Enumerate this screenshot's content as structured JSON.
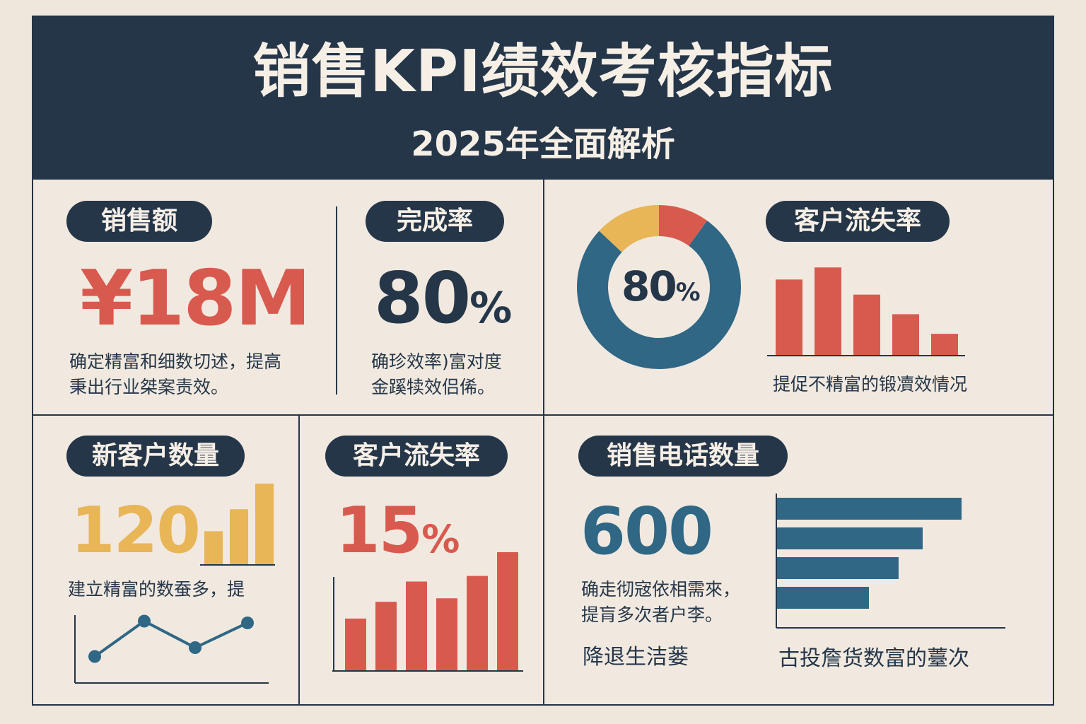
{
  "header": {
    "title": "销售KPI绩效考核指标",
    "subtitle": "2025年全面解析"
  },
  "colors": {
    "navy": "#253649",
    "red": "#d85a4f",
    "yellow": "#e8b557",
    "blue": "#2f6785",
    "background": "#efe7dc"
  },
  "cards": {
    "sales": {
      "label": "销售额",
      "value": "¥18M",
      "desc_line1": "确定精富和细数切述，提高",
      "desc_line2": "秉出行业桀案责效。"
    },
    "completion": {
      "label": "完成率",
      "value": "80",
      "unit": "%",
      "desc_line1": "确珍效率)富对度",
      "desc_line2": "金蹊犊效侣俙。"
    },
    "churn_top": {
      "label": "客户流失率",
      "donut_value": "80",
      "donut_unit": "%",
      "desc": "提促不精富的锻凟效情况"
    },
    "new_customers": {
      "label": "新客户数量",
      "value": "120",
      "desc": "建立精富的数蚕多，提"
    },
    "churn_bottom": {
      "label": "客户流失率",
      "value": "15",
      "unit": "%"
    },
    "calls": {
      "label": "销售电话数量",
      "value": "600",
      "desc_line1": "确走彻宼依相需來，",
      "desc_line2": "提肓多次者户李。",
      "note_left": "降退生洁蒌",
      "note_right": "古投詹货数富的薹次"
    }
  },
  "chart_data": [
    {
      "id": "donut",
      "type": "pie",
      "title": "客户流失率",
      "center_label": "80%",
      "slices": [
        {
          "name": "red",
          "value": 10,
          "color": "#d85a4f"
        },
        {
          "name": "blue",
          "value": 77,
          "color": "#2f6785"
        },
        {
          "name": "yellow",
          "value": 13,
          "color": "#e8b557"
        }
      ]
    },
    {
      "id": "churn_top_bars",
      "type": "bar",
      "values": [
        100,
        116,
        80,
        54,
        28
      ],
      "ylim": [
        0,
        120
      ],
      "color": "#d85a4f"
    },
    {
      "id": "new_customers_bars",
      "type": "bar",
      "values": [
        45,
        75,
        110
      ],
      "ylim": [
        0,
        110
      ],
      "color": "#e8b557"
    },
    {
      "id": "new_customers_line",
      "type": "line",
      "values": [
        15,
        35,
        20,
        34
      ],
      "ylim": [
        0,
        40
      ],
      "color": "#2f6785"
    },
    {
      "id": "churn_bottom_bars",
      "type": "bar",
      "values": [
        74,
        98,
        127,
        103,
        135,
        169
      ],
      "ylim": [
        0,
        170
      ],
      "color": "#d85a4f"
    },
    {
      "id": "calls_hbars",
      "type": "bar",
      "orientation": "horizontal",
      "values": [
        100,
        79,
        66,
        50
      ],
      "xlim": [
        0,
        100
      ],
      "color": "#2f6785"
    }
  ]
}
